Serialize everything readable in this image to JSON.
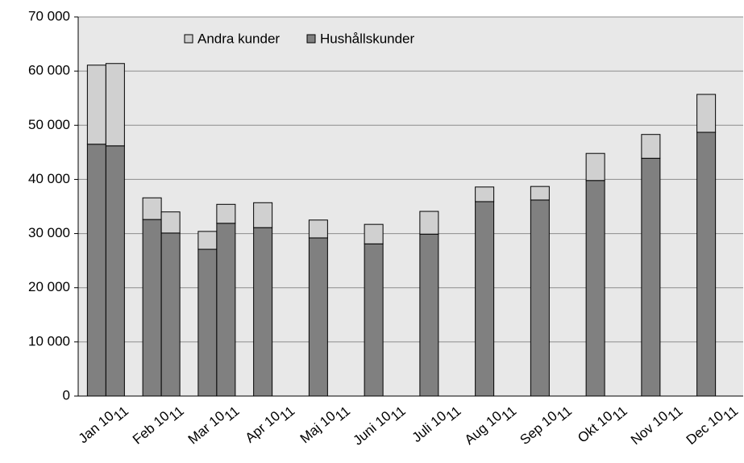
{
  "chart_data": {
    "type": "grouped-stacked-bar",
    "categories": [
      "Jan 10",
      "Feb 10",
      "Mar 10",
      "Apr 10",
      "Maj 10",
      "Juni 10",
      "Juli 10",
      "Aug 10",
      "Sep 10",
      "Okt 10",
      "Nov 10",
      "Dec 10"
    ],
    "second_labels": [
      "11",
      "11",
      "11",
      "11",
      "11",
      "11",
      "11",
      "11",
      "11",
      "11",
      "11",
      "11"
    ],
    "series": [
      {
        "name": "Hushållskunder",
        "color": "#808080",
        "values": [
          [
            46500,
            46200
          ],
          [
            32600,
            30100
          ],
          [
            27100,
            31900
          ],
          [
            31100,
            null
          ],
          [
            29200,
            null
          ],
          [
            28100,
            null
          ],
          [
            29900,
            null
          ],
          [
            35900,
            null
          ],
          [
            36200,
            null
          ],
          [
            39800,
            null
          ],
          [
            43900,
            null
          ],
          [
            48700,
            null
          ]
        ]
      },
      {
        "name": "Andra kunder",
        "color": "#d0d0d0",
        "values": [
          [
            14600,
            15200
          ],
          [
            4000,
            3900
          ],
          [
            3300,
            3500
          ],
          [
            4600,
            null
          ],
          [
            3300,
            null
          ],
          [
            3600,
            null
          ],
          [
            4200,
            null
          ],
          [
            2700,
            null
          ],
          [
            2500,
            null
          ],
          [
            5000,
            null
          ],
          [
            4400,
            null
          ],
          [
            7000,
            null
          ]
        ]
      }
    ],
    "legend_order": [
      1,
      0
    ],
    "ylim": [
      0,
      70000
    ],
    "yticks": [
      0,
      {
        "value": 10000,
        "label": "10 000"
      },
      {
        "value": 20000,
        "label": "20 000"
      },
      {
        "value": 30000,
        "label": "30 000"
      },
      {
        "value": 40000,
        "label": "40 000"
      },
      {
        "value": 50000,
        "label": "50 000"
      },
      {
        "value": 60000,
        "label": "60 000"
      },
      {
        "value": 70000,
        "label": "70 000"
      }
    ],
    "grid": true
  }
}
